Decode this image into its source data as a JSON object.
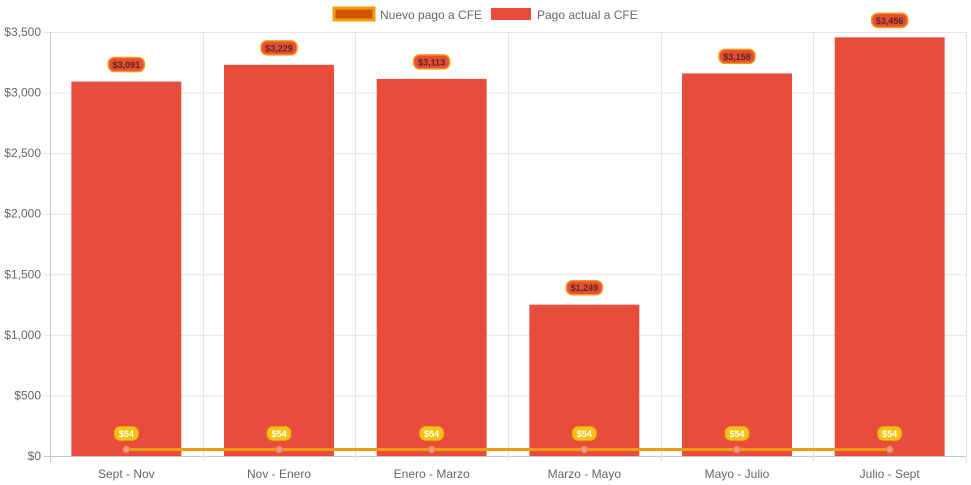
{
  "chart_data": {
    "type": "bar",
    "categories": [
      "Sept - Nov",
      "Nov - Enero",
      "Enero - Marzo",
      "Marzo - Mayo",
      "Mayo - Julio",
      "Julio - Sept"
    ],
    "series": [
      {
        "name": "Nuevo pago a CFE",
        "type": "line",
        "values": [
          54,
          54,
          54,
          54,
          54,
          54
        ],
        "labels": [
          "$54",
          "$54",
          "$54",
          "$54",
          "$54",
          "$54"
        ],
        "color": "#f39c12",
        "legend_fill": "#d35400"
      },
      {
        "name": "Pago actual a CFE",
        "type": "bar",
        "values": [
          3091,
          3229,
          3113,
          1249,
          3158,
          3456
        ],
        "labels": [
          "$3,091",
          "$3,229",
          "$3,113",
          "$1,249",
          "$3,158",
          "$3,456"
        ],
        "color": "#e74c3c"
      }
    ],
    "title": "",
    "xlabel": "",
    "ylabel": "",
    "ylim": [
      0,
      3500
    ],
    "yticks": [
      0,
      500,
      1000,
      1500,
      2000,
      2500,
      3000,
      3500
    ],
    "ytick_labels": [
      "$0",
      "$500",
      "$1,000",
      "$1,500",
      "$2,000",
      "$2,500",
      "$3,000",
      "$3,500"
    ],
    "grid": true,
    "legend_position": "top-center"
  }
}
